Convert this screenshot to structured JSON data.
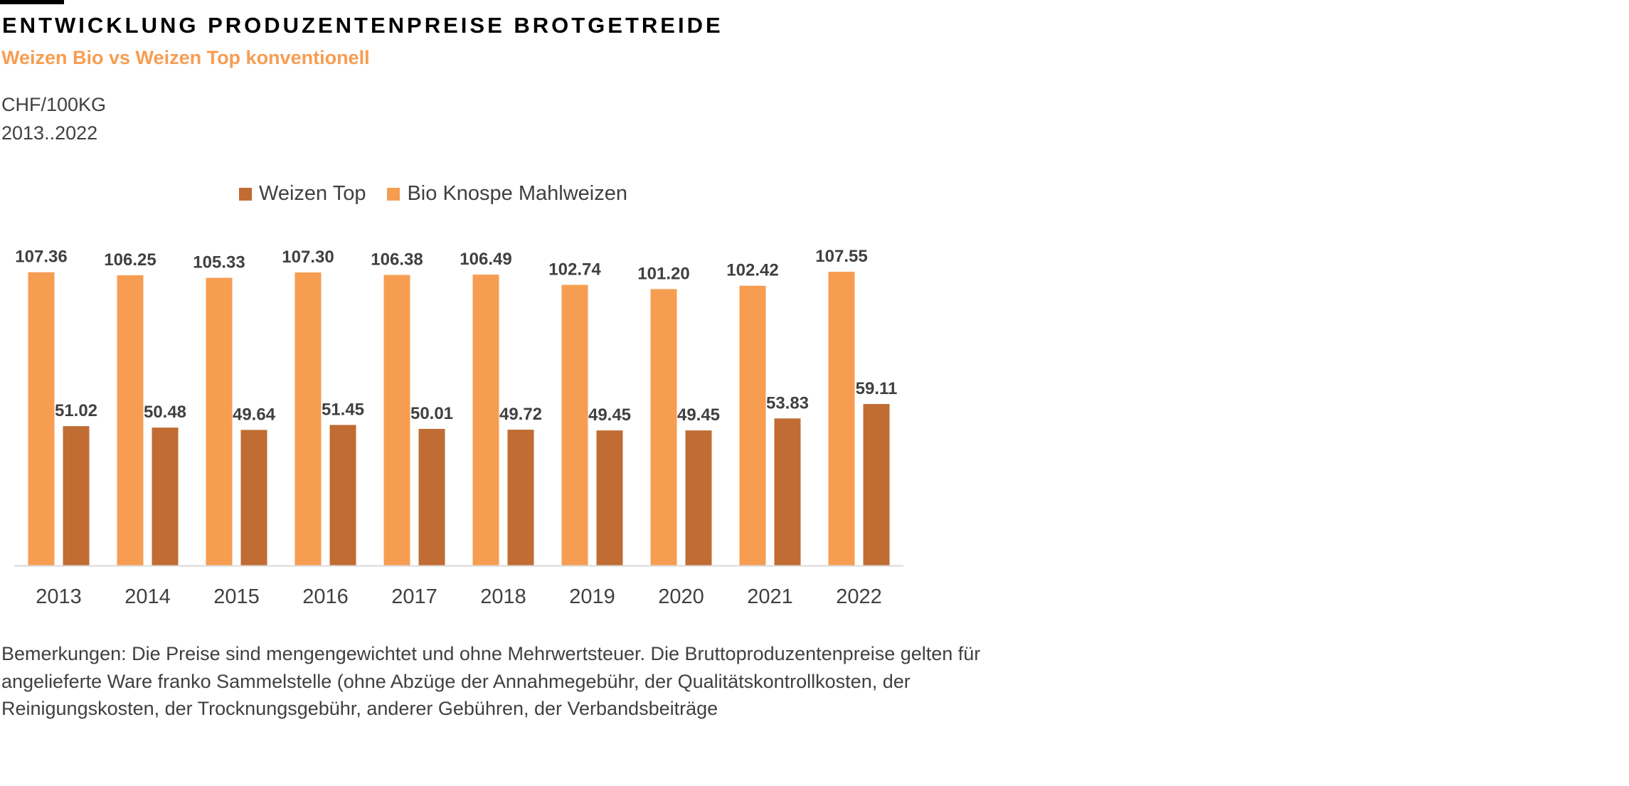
{
  "header": {
    "title": "ENTWICKLUNG PRODUZENTENPREISE BROTGETREIDE",
    "subtitle": "Weizen Bio vs Weizen Top konventionell",
    "unit": "CHF/100KG",
    "period": "2013..2022"
  },
  "colors": {
    "bio": "#F79D52",
    "top": "#C06C33",
    "accent": "#F79D52"
  },
  "chart_data": {
    "type": "bar",
    "categories": [
      "2013",
      "2014",
      "2015",
      "2016",
      "2017",
      "2018",
      "2019",
      "2020",
      "2021",
      "2022"
    ],
    "series": [
      {
        "name": "Bio Knospe Mahlweizen",
        "color": "#F79D52",
        "values": [
          107.36,
          106.25,
          105.33,
          107.3,
          106.38,
          106.49,
          102.74,
          101.2,
          102.42,
          107.55
        ],
        "labels": [
          "107.36",
          "106.25",
          "105.33",
          "107.30",
          "106.38",
          "106.49",
          "102.74",
          "101.20",
          "102.42",
          "107.55"
        ]
      },
      {
        "name": "Weizen Top",
        "color": "#C06C33",
        "values": [
          51.02,
          50.48,
          49.64,
          51.45,
          50.01,
          49.72,
          49.45,
          49.45,
          53.83,
          59.11
        ],
        "labels": [
          "51.02",
          "50.48",
          "49.64",
          "51.45",
          "50.01",
          "49.72",
          "49.45",
          "49.45",
          "53.83",
          "59.11"
        ]
      }
    ],
    "legend": [
      "Weizen Top",
      "Bio Knospe Mahlweizen"
    ],
    "legend_position": "top",
    "ylim": [
      0,
      110
    ],
    "grid": false,
    "xlabel": "",
    "ylabel": ""
  },
  "note": "Bemerkungen: Die Preise sind mengengewichtet und ohne Mehrwertsteuer. Die Bruttoproduzentenpreise gelten für angelieferte Ware franko Sammelstelle (ohne Abzüge der Annahmegebühr, der Qualitätskontrollkosten, der Reinigungskosten, der Trocknungsgebühr, anderer Gebühren, der Verbandsbeiträge"
}
